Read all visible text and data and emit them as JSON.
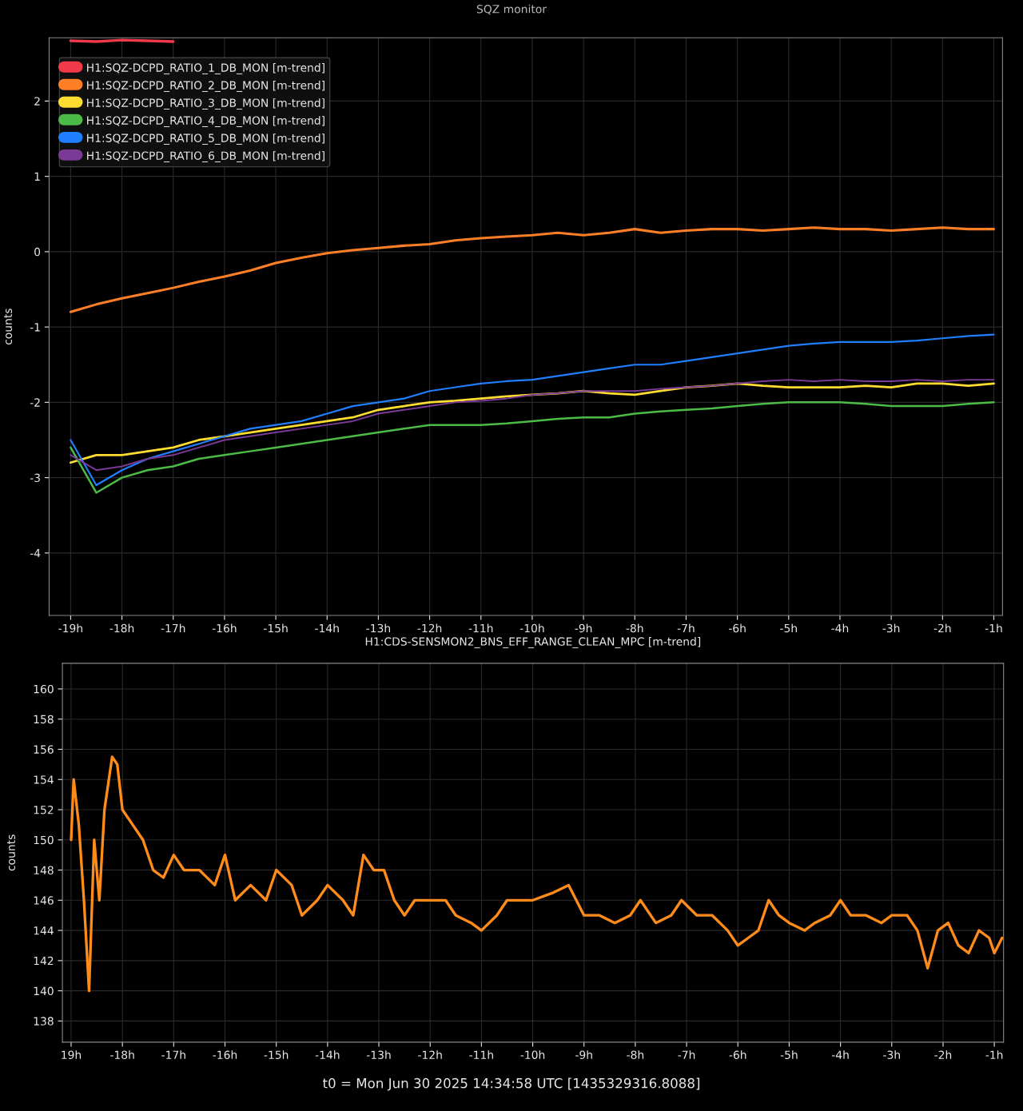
{
  "chart_data": [
    {
      "type": "line",
      "title": "SQZ monitor",
      "ylabel": "counts",
      "x": [
        -19,
        -18.5,
        -18,
        -17.5,
        -17,
        -16.5,
        -16,
        -15.5,
        -15,
        -14.5,
        -14,
        -13.5,
        -13,
        -12.5,
        -12,
        -11.5,
        -11,
        -10.5,
        -10,
        -9.5,
        -9,
        -8.5,
        -8,
        -7.5,
        -7,
        -6.5,
        -6,
        -5.5,
        -5,
        -4.5,
        -4,
        -3.5,
        -3,
        -2.5,
        -2,
        -1.5,
        -1
      ],
      "series": [
        {
          "name": "H1:SQZ-DCPD_RATIO_1_DB_MON [m-trend]",
          "color": "#f03a4a",
          "values": [
            2.8,
            2.79,
            2.81,
            2.8,
            2.79,
            null,
            null,
            null,
            null,
            null,
            null,
            null,
            null,
            null,
            null,
            null,
            null,
            null,
            null,
            null,
            null,
            null,
            null,
            null,
            null,
            null,
            null,
            null,
            null,
            null,
            null,
            null,
            null,
            null,
            null,
            null,
            null
          ]
        },
        {
          "name": "H1:SQZ-DCPD_RATIO_2_DB_MON [m-trend]",
          "color": "#ff7f27",
          "values": [
            -0.8,
            -0.7,
            -0.62,
            -0.55,
            -0.48,
            -0.4,
            -0.33,
            -0.25,
            -0.15,
            -0.08,
            -0.02,
            0.02,
            0.05,
            0.08,
            0.1,
            0.15,
            0.18,
            0.2,
            0.22,
            0.25,
            0.22,
            0.25,
            0.3,
            0.25,
            0.28,
            0.3,
            0.3,
            0.28,
            0.3,
            0.32,
            0.3,
            0.3,
            0.28,
            0.3,
            0.32,
            0.3,
            0.3
          ]
        },
        {
          "name": "H1:SQZ-DCPD_RATIO_3_DB_MON [m-trend]",
          "color": "#ffdc30",
          "values": [
            -2.8,
            -2.7,
            -2.7,
            -2.65,
            -2.6,
            -2.5,
            -2.45,
            -2.4,
            -2.35,
            -2.3,
            -2.25,
            -2.2,
            -2.1,
            -2.05,
            -2.0,
            -1.98,
            -1.95,
            -1.92,
            -1.9,
            -1.88,
            -1.85,
            -1.88,
            -1.9,
            -1.85,
            -1.8,
            -1.78,
            -1.75,
            -1.78,
            -1.8,
            -1.8,
            -1.8,
            -1.78,
            -1.8,
            -1.75,
            -1.75,
            -1.78,
            -1.75
          ]
        },
        {
          "name": "H1:SQZ-DCPD_RATIO_4_DB_MON [m-trend]",
          "color": "#4cbb47",
          "values": [
            -2.6,
            -3.2,
            -3.0,
            -2.9,
            -2.85,
            -2.75,
            -2.7,
            -2.65,
            -2.6,
            -2.55,
            -2.5,
            -2.45,
            -2.4,
            -2.35,
            -2.3,
            -2.3,
            -2.3,
            -2.28,
            -2.25,
            -2.22,
            -2.2,
            -2.2,
            -2.15,
            -2.12,
            -2.1,
            -2.08,
            -2.05,
            -2.02,
            -2.0,
            -2.0,
            -2.0,
            -2.02,
            -2.05,
            -2.05,
            -2.05,
            -2.02,
            -2.0
          ]
        },
        {
          "name": "H1:SQZ-DCPD_RATIO_5_DB_MON [m-trend]",
          "color": "#1f7fff",
          "values": [
            -2.5,
            -3.1,
            -2.9,
            -2.75,
            -2.65,
            -2.55,
            -2.45,
            -2.35,
            -2.3,
            -2.25,
            -2.15,
            -2.05,
            -2.0,
            -1.95,
            -1.85,
            -1.8,
            -1.75,
            -1.72,
            -1.7,
            -1.65,
            -1.6,
            -1.55,
            -1.5,
            -1.5,
            -1.45,
            -1.4,
            -1.35,
            -1.3,
            -1.25,
            -1.22,
            -1.2,
            -1.2,
            -1.2,
            -1.18,
            -1.15,
            -1.12,
            -1.1
          ]
        },
        {
          "name": "H1:SQZ-DCPD_RATIO_6_DB_MON [m-trend]",
          "color": "#7a3a96",
          "values": [
            -2.7,
            -2.9,
            -2.85,
            -2.75,
            -2.7,
            -2.6,
            -2.5,
            -2.45,
            -2.4,
            -2.35,
            -2.3,
            -2.25,
            -2.15,
            -2.1,
            -2.05,
            -2.0,
            -1.98,
            -1.95,
            -1.9,
            -1.88,
            -1.85,
            -1.85,
            -1.85,
            -1.82,
            -1.8,
            -1.78,
            -1.75,
            -1.72,
            -1.7,
            -1.72,
            -1.7,
            -1.72,
            -1.72,
            -1.7,
            -1.72,
            -1.7,
            -1.7
          ]
        }
      ],
      "xlim": [
        -19.42,
        -0.83
      ],
      "ylim": [
        -4.83,
        2.84
      ],
      "xticks": [
        {
          "value": -19,
          "label": "-19h"
        },
        {
          "value": -18,
          "label": "-18h"
        },
        {
          "value": -17,
          "label": "-17h"
        },
        {
          "value": -16,
          "label": "-16h"
        },
        {
          "value": -15,
          "label": "-15h"
        },
        {
          "value": -14,
          "label": "-14h"
        },
        {
          "value": -13,
          "label": "-13h"
        },
        {
          "value": -12,
          "label": "-12h"
        },
        {
          "value": -11,
          "label": "-11h"
        },
        {
          "value": -10,
          "label": "-10h"
        },
        {
          "value": -9,
          "label": "-9h"
        },
        {
          "value": -8,
          "label": "-8h"
        },
        {
          "value": -7,
          "label": "-7h"
        },
        {
          "value": -6,
          "label": "-6h"
        },
        {
          "value": -5,
          "label": "-5h"
        },
        {
          "value": -4,
          "label": "-4h"
        },
        {
          "value": -3,
          "label": "-3h"
        },
        {
          "value": -2,
          "label": "-2h"
        },
        {
          "value": -1,
          "label": "-1h"
        }
      ],
      "yticks": [
        -4,
        -3,
        -2,
        -1,
        0,
        1,
        2
      ],
      "grid": true,
      "legend": "top left",
      "line_style": "solid",
      "marker": "none"
    },
    {
      "type": "line",
      "title": "H1:CDS-SENSMON2_BNS_EFF_RANGE_CLEAN_MPC [m-trend]",
      "ylabel": "counts",
      "annotations": [
        "t0 = Mon Jun 30 2025 14:34:58 UTC [1435329316.8088]"
      ],
      "x": [
        -19.0,
        -18.95,
        -18.85,
        -18.75,
        -18.65,
        -18.55,
        -18.45,
        -18.35,
        -18.2,
        -18.1,
        -18.0,
        -17.8,
        -17.6,
        -17.4,
        -17.2,
        -17.0,
        -16.8,
        -16.5,
        -16.2,
        -16.0,
        -15.8,
        -15.5,
        -15.2,
        -15.0,
        -14.7,
        -14.5,
        -14.2,
        -14.0,
        -13.7,
        -13.5,
        -13.3,
        -13.1,
        -12.9,
        -12.7,
        -12.5,
        -12.3,
        -12.0,
        -11.7,
        -11.5,
        -11.2,
        -11.0,
        -10.7,
        -10.5,
        -10.2,
        -10.0,
        -9.6,
        -9.3,
        -9.0,
        -8.7,
        -8.4,
        -8.1,
        -7.9,
        -7.6,
        -7.3,
        -7.1,
        -6.8,
        -6.5,
        -6.2,
        -6.0,
        -5.8,
        -5.6,
        -5.4,
        -5.2,
        -5.0,
        -4.7,
        -4.5,
        -4.2,
        -4.0,
        -3.8,
        -3.5,
        -3.2,
        -3.0,
        -2.7,
        -2.5,
        -2.3,
        -2.1,
        -1.9,
        -1.7,
        -1.5,
        -1.3,
        -1.1,
        -1.0,
        -0.85
      ],
      "series": [
        {
          "color": "#ff8c1a",
          "values": [
            150,
            154,
            151,
            146,
            140,
            150,
            146,
            152,
            155.5,
            155,
            152,
            151,
            150,
            148,
            147.5,
            149,
            148,
            148,
            147,
            149,
            146,
            147,
            146,
            148,
            147,
            145,
            146,
            147,
            146,
            145,
            149,
            148,
            148,
            146,
            145,
            146,
            146,
            146,
            145,
            144.5,
            144,
            145,
            146,
            146,
            146,
            146.5,
            147,
            145,
            145,
            144.5,
            145,
            146,
            144.5,
            145,
            146,
            145,
            145,
            144,
            143,
            143.5,
            144,
            146,
            145,
            144.5,
            144,
            144.5,
            145,
            146,
            145,
            145,
            144.5,
            145,
            145,
            144,
            141.5,
            144,
            144.5,
            143,
            142.5,
            144,
            143.5,
            142.5,
            143.5
          ]
        }
      ],
      "xlim": [
        -19.17,
        -0.82
      ],
      "ylim": [
        136.6,
        161.7
      ],
      "xticks": [
        {
          "value": -19,
          "label": "19h"
        },
        {
          "value": -18,
          "label": "-18h"
        },
        {
          "value": -17,
          "label": "-17h"
        },
        {
          "value": -16,
          "label": "-16h"
        },
        {
          "value": -15,
          "label": "-15h"
        },
        {
          "value": -14,
          "label": "-14h"
        },
        {
          "value": -13,
          "label": "-13h"
        },
        {
          "value": -12,
          "label": "-12h"
        },
        {
          "value": -11,
          "label": "-11h"
        },
        {
          "value": -10,
          "label": "-10h"
        },
        {
          "value": -9,
          "label": "-9h"
        },
        {
          "value": -8,
          "label": "-8h"
        },
        {
          "value": -7,
          "label": "-7h"
        },
        {
          "value": -6,
          "label": "-6h"
        },
        {
          "value": -5,
          "label": "-5h"
        },
        {
          "value": -4,
          "label": "-4h"
        },
        {
          "value": -3,
          "label": "-3h"
        },
        {
          "value": -2,
          "label": "-2h"
        },
        {
          "value": -1,
          "label": "-1h"
        }
      ],
      "yticks": [
        138,
        140,
        142,
        144,
        146,
        148,
        150,
        152,
        154,
        156,
        158,
        160
      ],
      "grid": true,
      "line_style": "solid",
      "marker": "none"
    }
  ]
}
